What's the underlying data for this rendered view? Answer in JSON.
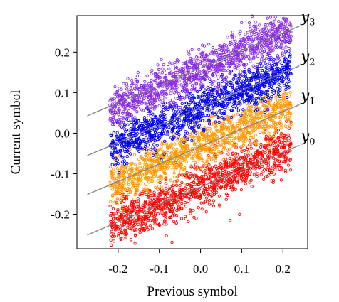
{
  "chart_data": {
    "type": "scatter",
    "title": "",
    "xlabel": "Previous symbol",
    "ylabel": "Current symbol",
    "xlim": [
      -0.3,
      0.26
    ],
    "ylim": [
      -0.285,
      0.29
    ],
    "xticks": [
      -0.2,
      -0.1,
      0.0,
      0.1,
      0.2
    ],
    "xtick_labels": [
      "-0.2",
      "-0.1",
      "0.0",
      "0.1",
      "0.2"
    ],
    "yticks": [
      -0.2,
      -0.1,
      0.0,
      0.1,
      0.2
    ],
    "ytick_labels": [
      "-0.2",
      "-0.1",
      "0.0",
      "0.1",
      "0.2"
    ],
    "grid": false,
    "legend": "none",
    "series": [
      {
        "key": "y0",
        "color": "#ff0000",
        "x_range": [
          -0.22,
          0.22
        ],
        "center_intercept": -0.13,
        "slope": 0.45,
        "spread": 0.028,
        "points": 1200
      },
      {
        "key": "y1",
        "color": "#ff9900",
        "x_range": [
          -0.22,
          0.22
        ],
        "center_intercept": -0.03,
        "slope": 0.45,
        "spread": 0.026,
        "points": 1200
      },
      {
        "key": "y2",
        "color": "#0000ee",
        "x_range": [
          -0.22,
          0.22
        ],
        "center_intercept": 0.06,
        "slope": 0.45,
        "spread": 0.026,
        "points": 1200
      },
      {
        "key": "y3",
        "color": "#8a2be2",
        "x_range": [
          -0.22,
          0.22
        ],
        "center_intercept": 0.155,
        "slope": 0.45,
        "spread": 0.026,
        "points": 1200
      }
    ],
    "lines": [
      {
        "key": "y0",
        "label_main": "y",
        "label_sub": "0",
        "color": "#808080",
        "intercept": -0.133,
        "slope": 0.43,
        "x_range": [
          -0.275,
          0.24
        ]
      },
      {
        "key": "y1",
        "label_main": "y",
        "label_sub": "1",
        "color": "#808080",
        "intercept": -0.033,
        "slope": 0.43,
        "x_range": [
          -0.275,
          0.24
        ]
      },
      {
        "key": "y2",
        "label_main": "y",
        "label_sub": "2",
        "color": "#808080",
        "intercept": 0.063,
        "slope": 0.43,
        "x_range": [
          -0.275,
          0.24
        ]
      },
      {
        "key": "y3",
        "label_main": "y",
        "label_sub": "3",
        "color": "#808080",
        "intercept": 0.161,
        "slope": 0.43,
        "x_range": [
          -0.275,
          0.24
        ]
      }
    ]
  }
}
